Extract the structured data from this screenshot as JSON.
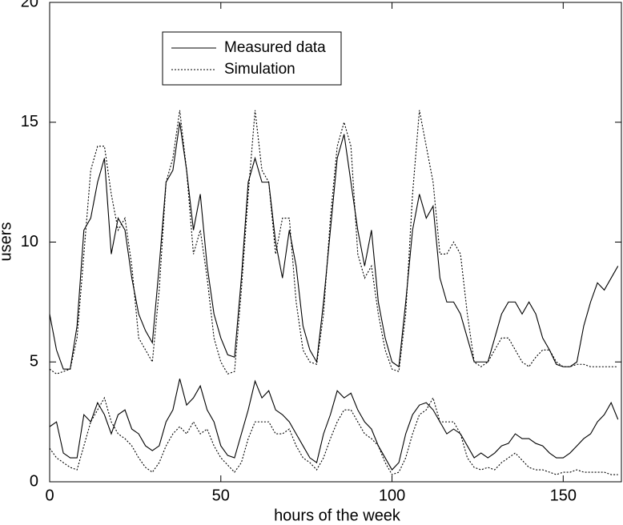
{
  "chart_data": {
    "type": "line",
    "xlabel": "hours of the week",
    "ylabel": "users",
    "x": [
      0,
      2,
      4,
      6,
      8,
      10,
      12,
      14,
      16,
      18,
      20,
      22,
      24,
      26,
      28,
      30,
      32,
      34,
      36,
      38,
      40,
      42,
      44,
      46,
      48,
      50,
      52,
      54,
      56,
      58,
      60,
      62,
      64,
      66,
      68,
      70,
      72,
      74,
      76,
      78,
      80,
      82,
      84,
      86,
      88,
      90,
      92,
      94,
      96,
      98,
      100,
      102,
      104,
      106,
      108,
      110,
      112,
      114,
      116,
      118,
      120,
      122,
      124,
      126,
      128,
      130,
      132,
      134,
      136,
      138,
      140,
      142,
      144,
      146,
      148,
      150,
      152,
      154,
      156,
      158,
      160,
      162,
      164,
      166
    ],
    "xlim": [
      0,
      167
    ],
    "xticks": [
      0,
      50,
      100,
      150
    ],
    "ylim": [
      0,
      20
    ],
    "yticks": [
      0,
      5,
      10,
      15,
      20
    ],
    "grid": false,
    "series": [
      {
        "name": "Measured data",
        "color": "#000000",
        "dash": "solid",
        "lines": [
          [
            7.0,
            5.5,
            4.7,
            4.7,
            6.5,
            10.5,
            11.0,
            12.5,
            13.5,
            9.5,
            11.0,
            10.5,
            8.5,
            7.0,
            6.3,
            5.8,
            9.0,
            12.5,
            13.0,
            15.0,
            13.0,
            10.5,
            12.0,
            9.0,
            7.0,
            6.0,
            5.3,
            5.2,
            8.5,
            12.5,
            13.5,
            12.5,
            12.5,
            10.0,
            8.5,
            10.5,
            9.0,
            6.5,
            5.5,
            5.0,
            7.5,
            10.5,
            13.5,
            14.5,
            12.5,
            10.5,
            9.0,
            10.5,
            7.5,
            6.0,
            5.0,
            4.8,
            7.5,
            10.5,
            12.0,
            11.0,
            11.5,
            8.5,
            7.5,
            7.5,
            7.0,
            6.0,
            5.0,
            5.0,
            5.0,
            6.0,
            7.0,
            7.5,
            7.5,
            7.0,
            7.5,
            7.0,
            6.0,
            5.5,
            4.9,
            4.8,
            4.8,
            5.0,
            6.5,
            7.5,
            8.3,
            8.0,
            8.5,
            9.0
          ],
          [
            2.3,
            2.5,
            1.2,
            1.0,
            1.0,
            2.8,
            2.5,
            3.3,
            2.8,
            2.0,
            2.8,
            3.0,
            2.2,
            2.0,
            1.5,
            1.3,
            1.5,
            2.5,
            3.0,
            4.3,
            3.2,
            3.5,
            4.0,
            3.0,
            2.5,
            1.5,
            1.1,
            1.0,
            2.0,
            3.0,
            4.2,
            3.5,
            3.8,
            3.0,
            2.8,
            2.5,
            2.0,
            1.5,
            1.0,
            0.8,
            2.0,
            2.8,
            3.8,
            3.5,
            3.7,
            3.0,
            2.5,
            2.2,
            1.5,
            1.0,
            0.5,
            0.8,
            2.0,
            2.8,
            3.2,
            3.3,
            3.0,
            2.5,
            2.0,
            2.2,
            2.0,
            1.5,
            1.0,
            1.2,
            1.0,
            1.2,
            1.5,
            1.6,
            2.0,
            1.8,
            1.8,
            1.6,
            1.5,
            1.2,
            1.0,
            1.0,
            1.2,
            1.5,
            1.8,
            2.0,
            2.5,
            2.8,
            3.3,
            2.6
          ]
        ]
      },
      {
        "name": "Simulation",
        "color": "#000000",
        "dash": "dotted",
        "lines": [
          [
            4.7,
            4.5,
            4.6,
            4.7,
            6.0,
            9.5,
            13.0,
            14.0,
            14.0,
            12.0,
            10.5,
            11.0,
            9.0,
            6.0,
            5.5,
            5.0,
            8.0,
            12.5,
            13.5,
            15.5,
            13.0,
            9.5,
            10.5,
            8.5,
            6.0,
            5.0,
            4.5,
            4.6,
            8.0,
            12.0,
            15.5,
            13.0,
            12.5,
            9.5,
            11.0,
            11.0,
            7.5,
            5.5,
            5.0,
            4.9,
            7.0,
            11.0,
            14.0,
            15.0,
            14.0,
            9.5,
            8.5,
            9.0,
            7.0,
            5.5,
            4.7,
            4.6,
            7.0,
            12.0,
            15.5,
            14.0,
            12.5,
            9.5,
            9.5,
            10.0,
            9.5,
            7.0,
            5.0,
            4.8,
            5.0,
            5.5,
            6.0,
            6.0,
            5.5,
            5.0,
            4.8,
            5.2,
            5.5,
            5.5,
            5.0,
            4.8,
            4.8,
            4.9,
            4.9,
            4.8,
            4.8,
            4.8,
            4.8,
            4.8
          ],
          [
            1.4,
            1.0,
            0.8,
            0.6,
            0.5,
            1.5,
            2.5,
            3.0,
            3.5,
            2.5,
            2.0,
            1.8,
            1.5,
            1.0,
            0.6,
            0.4,
            0.8,
            1.5,
            2.0,
            2.3,
            2.0,
            2.5,
            2.0,
            2.2,
            1.5,
            1.0,
            0.7,
            0.4,
            0.8,
            1.8,
            2.5,
            2.5,
            2.5,
            2.0,
            2.0,
            2.2,
            1.5,
            1.0,
            0.8,
            0.5,
            1.0,
            1.8,
            2.5,
            3.0,
            3.0,
            2.5,
            2.0,
            1.8,
            1.5,
            0.8,
            0.3,
            0.4,
            1.0,
            2.0,
            2.8,
            3.0,
            3.5,
            2.5,
            2.5,
            2.5,
            2.0,
            1.0,
            0.6,
            0.5,
            0.6,
            0.5,
            0.8,
            1.0,
            1.2,
            0.9,
            0.6,
            0.5,
            0.5,
            0.4,
            0.3,
            0.4,
            0.4,
            0.5,
            0.4,
            0.4,
            0.4,
            0.4,
            0.3,
            0.3
          ]
        ]
      }
    ]
  }
}
